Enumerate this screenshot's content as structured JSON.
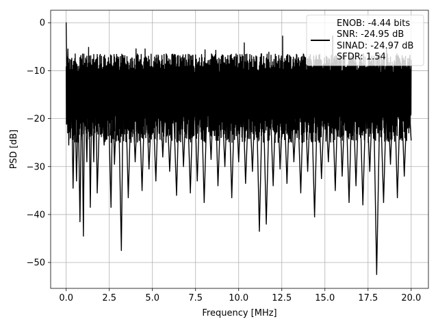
{
  "chart_data": {
    "type": "line",
    "title": "",
    "xlabel": "Frequency [MHz]",
    "ylabel": "PSD [dB]",
    "xlim": [
      -0.9,
      21.0
    ],
    "ylim": [
      -55.4,
      2.6
    ],
    "xticks": [
      0.0,
      2.5,
      5.0,
      7.5,
      10.0,
      12.5,
      15.0,
      17.5,
      20.0
    ],
    "xtick_labels": [
      "0.0",
      "2.5",
      "5.0",
      "7.5",
      "10.0",
      "12.5",
      "15.0",
      "17.5",
      "20.0"
    ],
    "yticks": [
      0,
      -10,
      -20,
      -30,
      -40,
      -50
    ],
    "ytick_labels": [
      "0",
      "−10",
      "−20",
      "−30",
      "−40",
      "−50"
    ],
    "grid": true,
    "legend_placement": "top-right",
    "legend_lines": [
      "ENOB: -4.44 bits",
      "SNR: -24.95 dB",
      "SINAD: -24.97 dB",
      "SFDR: 1.54"
    ],
    "series": [
      {
        "color": "#000000",
        "x": [
          0.0,
          0.05,
          0.1,
          0.15,
          0.2,
          0.25,
          0.3,
          0.4,
          0.5,
          0.6,
          0.7,
          0.8,
          0.9,
          1.0,
          1.05,
          1.1,
          1.2,
          1.3,
          1.4,
          1.5,
          1.6,
          1.7,
          1.8,
          2.0,
          2.2,
          2.4,
          2.6,
          2.7,
          2.8,
          3.0,
          3.2,
          3.3,
          3.4,
          3.6,
          3.8,
          4.0,
          4.2,
          4.4,
          4.6,
          4.8,
          5.0,
          5.2,
          5.4,
          5.6,
          5.8,
          6.0,
          6.2,
          6.4,
          6.6,
          6.8,
          7.0,
          7.2,
          7.4,
          7.6,
          7.8,
          8.0,
          8.2,
          8.4,
          8.6,
          8.8,
          9.0,
          9.2,
          9.4,
          9.6,
          9.8,
          10.0,
          10.2,
          10.4,
          10.6,
          10.8,
          11.0,
          11.2,
          11.4,
          11.6,
          11.8,
          12.0,
          12.2,
          12.4,
          12.6,
          12.8,
          13.0,
          13.2,
          13.4,
          13.6,
          13.8,
          14.0,
          14.2,
          14.4,
          14.6,
          14.8,
          15.0,
          15.2,
          15.4,
          15.6,
          15.8,
          16.0,
          16.2,
          16.4,
          16.6,
          16.8,
          17.0,
          17.2,
          17.4,
          17.6,
          17.8,
          18.0,
          18.2,
          18.4,
          18.6,
          18.8,
          19.0,
          19.2,
          19.4,
          19.6,
          19.8,
          20.0
        ],
        "y": [
          0.0,
          -16.0,
          -5.5,
          -25.5,
          -8.0,
          -24.0,
          -11.5,
          -34.5,
          -14.0,
          -33.0,
          -17.5,
          -41.5,
          -12.5,
          -44.5,
          -21.0,
          -15.0,
          -29.0,
          -9.0,
          -38.5,
          -11.0,
          -29.0,
          -10.0,
          -35.5,
          -12.0,
          -25.5,
          -9.5,
          -38.5,
          -14.0,
          -29.5,
          -10.0,
          -47.5,
          -16.0,
          -8.5,
          -36.5,
          -11.0,
          -29.0,
          -12.5,
          -35.0,
          -10.0,
          -30.5,
          -14.0,
          -33.0,
          -9.5,
          -28.0,
          -12.0,
          -31.0,
          -15.0,
          -36.0,
          -8.5,
          -30.0,
          -13.0,
          -35.5,
          -10.0,
          -33.0,
          -11.0,
          -37.5,
          -12.5,
          -28.5,
          -9.0,
          -34.0,
          -13.5,
          -30.0,
          -10.5,
          -36.5,
          -12.0,
          -29.0,
          -9.5,
          -33.5,
          -14.0,
          -31.0,
          -11.0,
          -43.5,
          -12.0,
          -42.0,
          -13.5,
          -34.0,
          -10.0,
          -30.5,
          -12.5,
          -33.5,
          -11.5,
          -29.0,
          -14.5,
          -35.5,
          -10.0,
          -31.0,
          -13.0,
          -40.5,
          -11.5,
          -32.5,
          -14.0,
          -29.0,
          -12.5,
          -35.0,
          -9.5,
          -32.0,
          -13.5,
          -37.5,
          -11.0,
          -34.0,
          -12.0,
          -38.0,
          -13.0,
          -31.0,
          -11.5,
          -52.5,
          -14.0,
          -37.5,
          -12.0,
          -29.5,
          -10.5,
          -36.5,
          -11.5,
          -32.0,
          -13.0,
          -24.5
        ]
      }
    ],
    "noise_band": {
      "upper_db": -6.5,
      "lower_db": -25.0,
      "peak_db": -2.0
    }
  }
}
